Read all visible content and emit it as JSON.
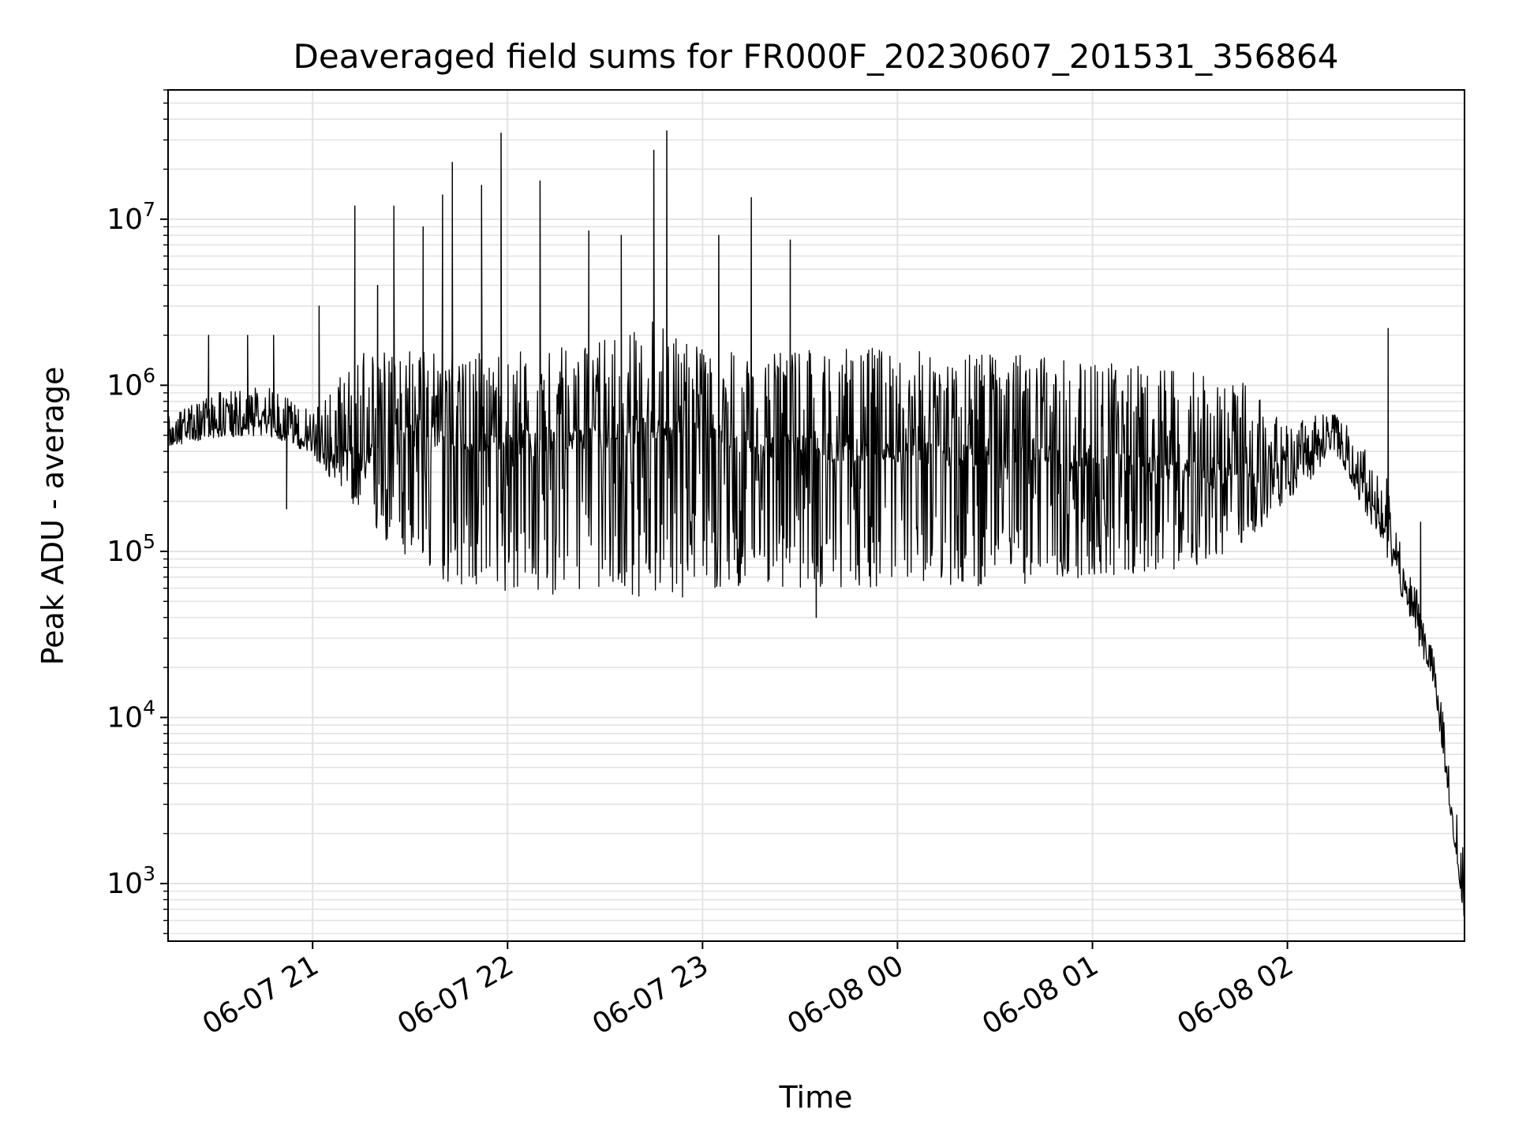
{
  "chart_data": {
    "type": "line",
    "title": "Deaveraged field sums for FR000F_20230607_201531_356864",
    "xlabel": "Time",
    "ylabel": "Peak ADU - average",
    "yscale": "log",
    "ylim": [
      450,
      60000000
    ],
    "xlim": [
      "2023-06-07 20:15:31",
      "2023-06-08 02:54:30"
    ],
    "grid": true,
    "x_ticks": [
      {
        "label": "06-07 21",
        "value": "2023-06-07 21:00"
      },
      {
        "label": "06-07 22",
        "value": "2023-06-07 22:00"
      },
      {
        "label": "06-07 23",
        "value": "2023-06-07 23:00"
      },
      {
        "label": "06-08 00",
        "value": "2023-06-08 00:00"
      },
      {
        "label": "06-08 01",
        "value": "2023-06-08 01:00"
      },
      {
        "label": "06-08 02",
        "value": "2023-06-08 02:00"
      }
    ],
    "y_ticks": [
      {
        "base": "10",
        "exp": "3",
        "value": 1000
      },
      {
        "base": "10",
        "exp": "4",
        "value": 10000
      },
      {
        "base": "10",
        "exp": "5",
        "value": 100000
      },
      {
        "base": "10",
        "exp": "6",
        "value": 1000000
      },
      {
        "base": "10",
        "exp": "7",
        "value": 10000000
      }
    ],
    "series": [
      {
        "color": "#000000",
        "x": [
          "2023-06-07 20:15:31",
          "2023-06-07 20:30",
          "2023-06-07 20:45",
          "2023-06-07 21:00",
          "2023-06-07 21:15",
          "2023-06-07 21:30",
          "2023-06-07 21:45",
          "2023-06-07 22:00",
          "2023-06-07 22:15",
          "2023-06-07 22:30",
          "2023-06-07 22:45",
          "2023-06-07 23:00",
          "2023-06-07 23:15",
          "2023-06-07 23:30",
          "2023-06-07 23:45",
          "2023-06-08 00:00",
          "2023-06-08 00:15",
          "2023-06-08 00:30",
          "2023-06-08 00:45",
          "2023-06-08 01:00",
          "2023-06-08 01:15",
          "2023-06-08 01:30",
          "2023-06-08 01:45",
          "2023-06-08 02:00",
          "2023-06-08 02:15",
          "2023-06-08 02:30",
          "2023-06-08 02:45",
          "2023-06-08 02:54:30"
        ],
        "baseline": [
          480000,
          580000,
          620000,
          450000,
          350000,
          600000,
          420000,
          450000,
          480000,
          500000,
          550000,
          500000,
          440000,
          420000,
          400000,
          390000,
          380000,
          380000,
          370000,
          360000,
          330000,
          300000,
          280000,
          350000,
          480000,
          150000,
          20000,
          600
        ],
        "envelope_low": [
          430000,
          480000,
          500000,
          380000,
          150000,
          80000,
          60000,
          55000,
          55000,
          50000,
          55000,
          50000,
          55000,
          58000,
          60000,
          60000,
          60000,
          62000,
          65000,
          70000,
          70000,
          80000,
          100000,
          200000,
          380000,
          100000,
          15000,
          600
        ],
        "envelope_high": [
          650000,
          900000,
          1000000,
          700000,
          1600000,
          1700000,
          1600000,
          1600000,
          1700000,
          2000000,
          2500000,
          1700000,
          1500000,
          1600000,
          1700000,
          1650000,
          1600000,
          1550000,
          1500000,
          1450000,
          1300000,
          1200000,
          1100000,
          600000,
          700000,
          300000,
          25000,
          1500
        ],
        "spikes": [
          {
            "x": "2023-06-07 20:28",
            "y": 2000000
          },
          {
            "x": "2023-06-07 20:40",
            "y": 2000000
          },
          {
            "x": "2023-06-07 20:48",
            "y": 2000000
          },
          {
            "x": "2023-06-07 20:52",
            "y": 180000
          },
          {
            "x": "2023-06-07 21:02",
            "y": 3000000
          },
          {
            "x": "2023-06-07 21:13",
            "y": 12000000
          },
          {
            "x": "2023-06-07 21:20",
            "y": 4000000
          },
          {
            "x": "2023-06-07 21:25",
            "y": 12000000
          },
          {
            "x": "2023-06-07 21:34",
            "y": 9000000
          },
          {
            "x": "2023-06-07 21:40",
            "y": 14000000
          },
          {
            "x": "2023-06-07 21:43",
            "y": 22000000
          },
          {
            "x": "2023-06-07 21:52",
            "y": 16000000
          },
          {
            "x": "2023-06-07 21:58",
            "y": 33000000
          },
          {
            "x": "2023-06-07 22:10",
            "y": 17000000
          },
          {
            "x": "2023-06-07 22:25",
            "y": 8500000
          },
          {
            "x": "2023-06-07 22:35",
            "y": 8000000
          },
          {
            "x": "2023-06-07 22:45",
            "y": 26000000
          },
          {
            "x": "2023-06-07 22:49",
            "y": 34000000
          },
          {
            "x": "2023-06-07 23:05",
            "y": 8000000
          },
          {
            "x": "2023-06-07 23:15",
            "y": 13500000
          },
          {
            "x": "2023-06-07 23:27",
            "y": 7500000
          },
          {
            "x": "2023-06-07 23:35",
            "y": 40000
          },
          {
            "x": "2023-06-08 02:31",
            "y": 2200000
          },
          {
            "x": "2023-06-08 02:41",
            "y": 150000
          }
        ]
      }
    ]
  }
}
